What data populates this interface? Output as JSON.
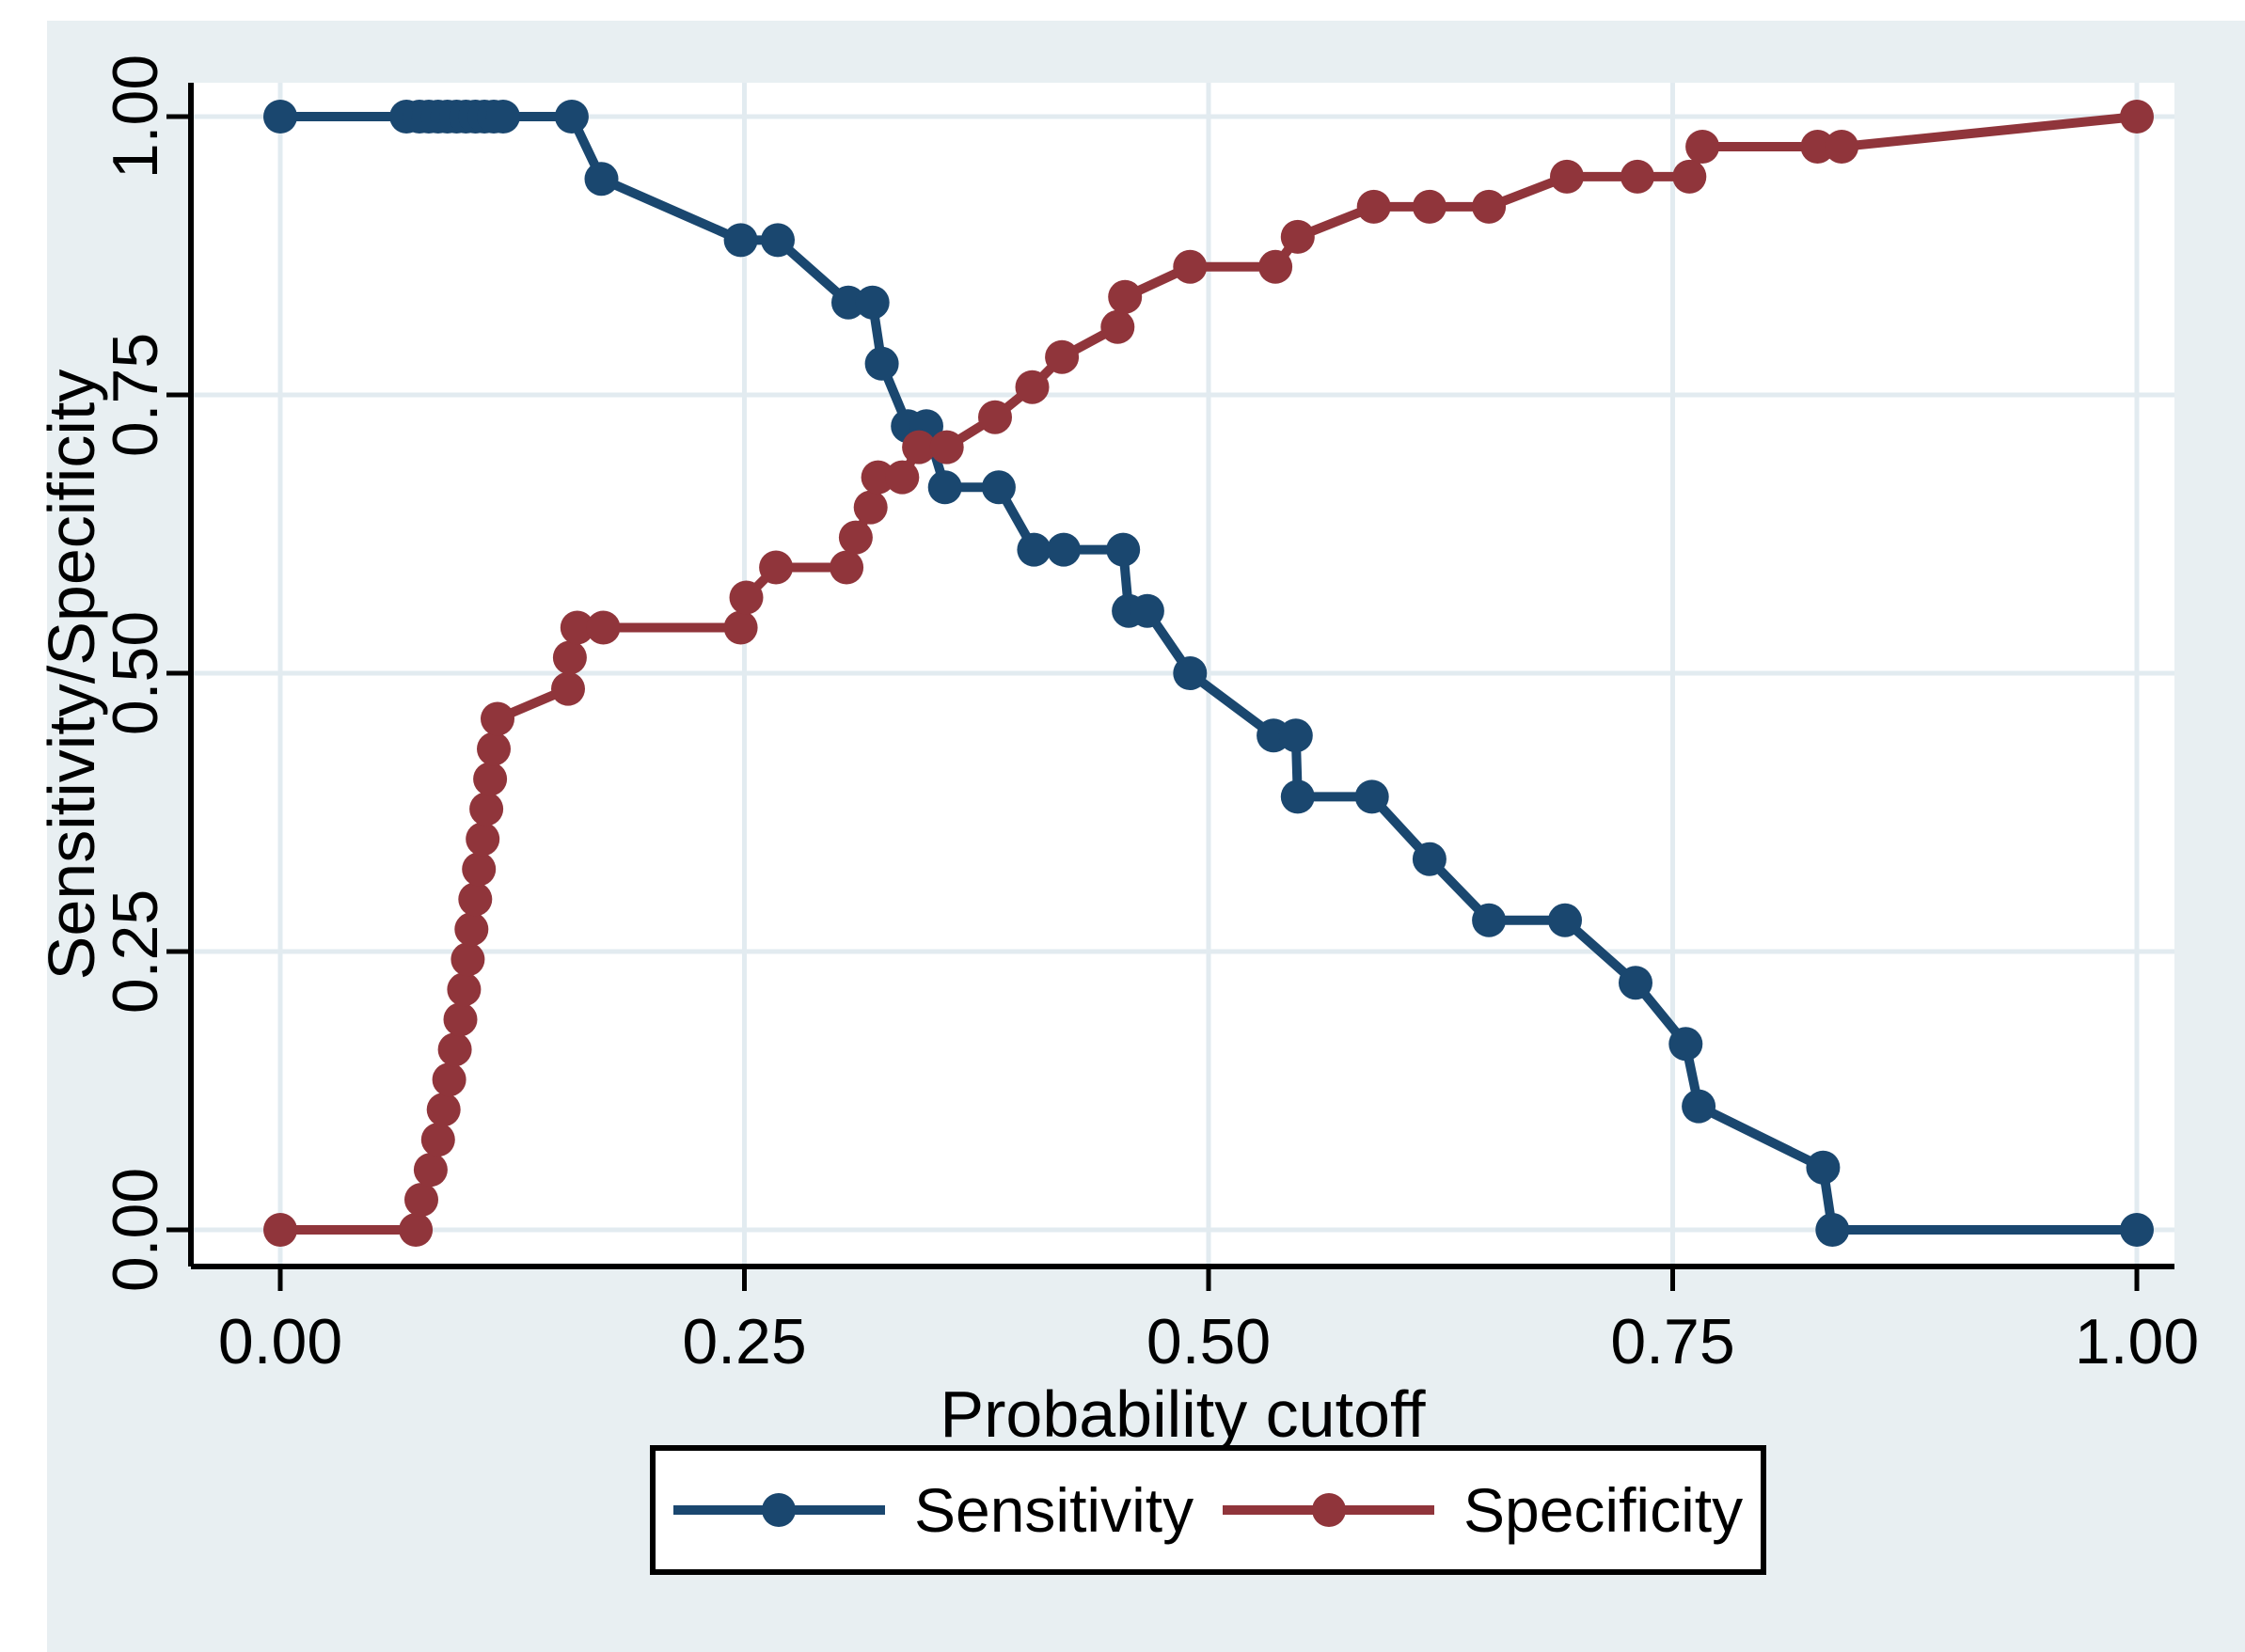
{
  "figure": {
    "background_color": "#e8eff2",
    "plot_background_color": "#ffffff",
    "gridline_color": "#e2ebf0",
    "axis_color": "#000000",
    "text_color": "#000000",
    "legend_border_color": "#000000",
    "legend_background_color": "#ffffff"
  },
  "chart_data": {
    "type": "line",
    "title": "",
    "xlabel": "Probability cutoff",
    "ylabel": "Sensitivity/Specificity",
    "xlim": [
      0,
      1
    ],
    "ylim": [
      0,
      1
    ],
    "grid": true,
    "legend_position": "bottom",
    "x_ticks": [
      {
        "value": 0.0,
        "label": "0.00"
      },
      {
        "value": 0.25,
        "label": "0.25"
      },
      {
        "value": 0.5,
        "label": "0.50"
      },
      {
        "value": 0.75,
        "label": "0.75"
      },
      {
        "value": 1.0,
        "label": "1.00"
      }
    ],
    "y_ticks": [
      {
        "value": 0.0,
        "label": "0.00"
      },
      {
        "value": 0.25,
        "label": "0.25"
      },
      {
        "value": 0.5,
        "label": "0.50"
      },
      {
        "value": 0.75,
        "label": "0.75"
      },
      {
        "value": 1.0,
        "label": "1.00"
      }
    ],
    "series": [
      {
        "name": "Sensitivity",
        "color": "#1a476f",
        "points": [
          [
            0.0,
            1.0
          ],
          [
            0.068,
            1.0
          ],
          [
            0.075,
            1.0
          ],
          [
            0.08,
            1.0
          ],
          [
            0.085,
            1.0
          ],
          [
            0.09,
            1.0
          ],
          [
            0.095,
            1.0
          ],
          [
            0.1,
            1.0
          ],
          [
            0.105,
            1.0
          ],
          [
            0.11,
            1.0
          ],
          [
            0.115,
            1.0
          ],
          [
            0.12,
            1.0
          ],
          [
            0.157,
            1.0
          ],
          [
            0.173,
            0.944
          ],
          [
            0.248,
            0.889
          ],
          [
            0.268,
            0.889
          ],
          [
            0.306,
            0.833
          ],
          [
            0.319,
            0.833
          ],
          [
            0.324,
            0.778
          ],
          [
            0.338,
            0.722
          ],
          [
            0.348,
            0.722
          ],
          [
            0.358,
            0.667
          ],
          [
            0.387,
            0.667
          ],
          [
            0.406,
            0.611
          ],
          [
            0.422,
            0.611
          ],
          [
            0.454,
            0.611
          ],
          [
            0.457,
            0.556
          ],
          [
            0.467,
            0.556
          ],
          [
            0.49,
            0.5
          ],
          [
            0.535,
            0.444
          ],
          [
            0.547,
            0.444
          ],
          [
            0.548,
            0.389
          ],
          [
            0.588,
            0.389
          ],
          [
            0.619,
            0.333
          ],
          [
            0.651,
            0.278
          ],
          [
            0.692,
            0.278
          ],
          [
            0.73,
            0.222
          ],
          [
            0.757,
            0.167
          ],
          [
            0.764,
            0.111
          ],
          [
            0.831,
            0.056
          ],
          [
            0.836,
            0.0
          ],
          [
            1.0,
            0.0
          ]
        ]
      },
      {
        "name": "Specificity",
        "color": "#90353b",
        "points": [
          [
            0.0,
            0.0
          ],
          [
            0.073,
            0.0
          ],
          [
            0.076,
            0.027
          ],
          [
            0.081,
            0.054
          ],
          [
            0.085,
            0.081
          ],
          [
            0.088,
            0.108
          ],
          [
            0.091,
            0.135
          ],
          [
            0.094,
            0.162
          ],
          [
            0.097,
            0.189
          ],
          [
            0.099,
            0.216
          ],
          [
            0.101,
            0.243
          ],
          [
            0.103,
            0.27
          ],
          [
            0.105,
            0.297
          ],
          [
            0.107,
            0.324
          ],
          [
            0.109,
            0.351
          ],
          [
            0.111,
            0.378
          ],
          [
            0.113,
            0.405
          ],
          [
            0.115,
            0.432
          ],
          [
            0.117,
            0.459
          ],
          [
            0.155,
            0.486
          ],
          [
            0.156,
            0.514
          ],
          [
            0.16,
            0.541
          ],
          [
            0.174,
            0.541
          ],
          [
            0.248,
            0.541
          ],
          [
            0.251,
            0.568
          ],
          [
            0.267,
            0.595
          ],
          [
            0.305,
            0.595
          ],
          [
            0.31,
            0.622
          ],
          [
            0.318,
            0.649
          ],
          [
            0.322,
            0.676
          ],
          [
            0.335,
            0.676
          ],
          [
            0.344,
            0.703
          ],
          [
            0.359,
            0.703
          ],
          [
            0.385,
            0.73
          ],
          [
            0.405,
            0.757
          ],
          [
            0.421,
            0.784
          ],
          [
            0.451,
            0.811
          ],
          [
            0.455,
            0.838
          ],
          [
            0.49,
            0.865
          ],
          [
            0.536,
            0.865
          ],
          [
            0.548,
            0.892
          ],
          [
            0.589,
            0.919
          ],
          [
            0.619,
            0.919
          ],
          [
            0.651,
            0.919
          ],
          [
            0.693,
            0.946
          ],
          [
            0.731,
            0.946
          ],
          [
            0.759,
            0.946
          ],
          [
            0.766,
            0.973
          ],
          [
            0.828,
            0.973
          ],
          [
            0.841,
            0.973
          ],
          [
            1.0,
            1.0
          ]
        ]
      }
    ]
  }
}
